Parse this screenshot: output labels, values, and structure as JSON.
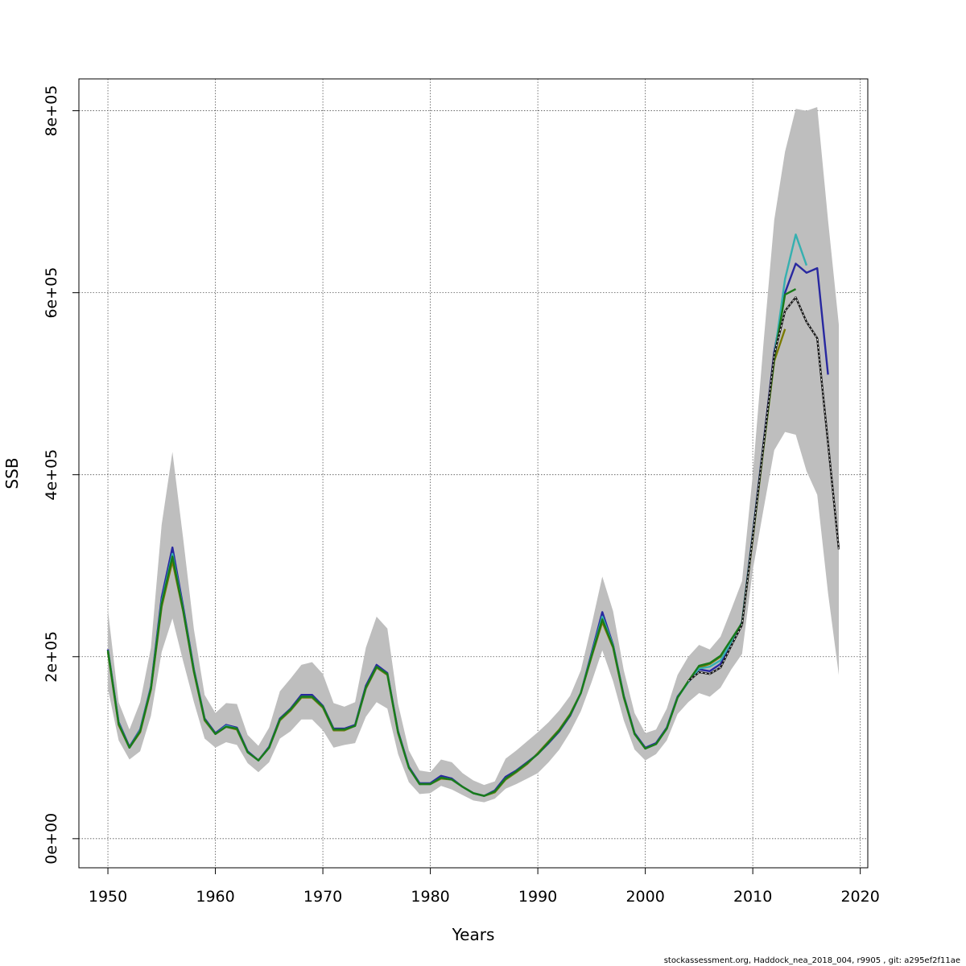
{
  "chart_data": {
    "type": "line",
    "title": "",
    "xlabel": "Years",
    "ylabel": "SSB",
    "xlim": [
      1947.3,
      2020.7
    ],
    "ylim": [
      -32000,
      835000
    ],
    "grid": true,
    "legend": "none",
    "x_ticks": [
      1950,
      1960,
      1970,
      1980,
      1990,
      2000,
      2010,
      2020
    ],
    "x_tick_labels": [
      "1950",
      "1960",
      "1970",
      "1980",
      "1990",
      "2000",
      "2010",
      "2020"
    ],
    "y_ticks": [
      0,
      200000,
      400000,
      600000,
      800000
    ],
    "y_tick_labels": [
      "0e+00",
      "2e+05",
      "4e+05",
      "6e+05",
      "8e+05"
    ],
    "footer": "stockassessment.org, Haddock_nea_2018_004, r9905 , git: a295ef2f11ae",
    "band": {
      "color": "#bebebe",
      "x": [
        1950,
        1951,
        1952,
        1953,
        1954,
        1955,
        1956,
        1957,
        1958,
        1959,
        1960,
        1961,
        1962,
        1963,
        1964,
        1965,
        1966,
        1967,
        1968,
        1969,
        1970,
        1971,
        1972,
        1973,
        1974,
        1975,
        1976,
        1977,
        1978,
        1979,
        1980,
        1981,
        1982,
        1983,
        1984,
        1985,
        1986,
        1987,
        1988,
        1989,
        1990,
        1991,
        1992,
        1993,
        1994,
        1995,
        1996,
        1997,
        1998,
        1999,
        2000,
        2001,
        2002,
        2003,
        2004,
        2005,
        2006,
        2007,
        2008,
        2009,
        2010,
        2011,
        2012,
        2013,
        2014,
        2015,
        2016,
        2017,
        2018
      ],
      "upper": [
        252000,
        150000,
        120000,
        150000,
        210000,
        345000,
        425000,
        330000,
        230000,
        158000,
        138000,
        149000,
        148000,
        114000,
        102000,
        122000,
        162000,
        176000,
        191000,
        194000,
        181000,
        149000,
        145000,
        150000,
        210000,
        244000,
        231000,
        148000,
        97000,
        75000,
        73000,
        87000,
        84000,
        72000,
        64000,
        59000,
        63000,
        88000,
        97000,
        107000,
        117000,
        128000,
        141000,
        157000,
        185000,
        235000,
        288000,
        250000,
        185000,
        138000,
        116000,
        120000,
        143000,
        180000,
        200000,
        213000,
        208000,
        222000,
        252000,
        283000,
        400000,
        545000,
        680000,
        755000,
        802000,
        800000,
        804000,
        680000,
        565000
      ],
      "lower": [
        165000,
        108000,
        87000,
        96000,
        135000,
        205000,
        242000,
        195000,
        150000,
        110000,
        100000,
        106000,
        103000,
        83000,
        73000,
        84000,
        110000,
        118000,
        131000,
        131000,
        119000,
        100000,
        103000,
        105000,
        134000,
        150000,
        143000,
        93000,
        62000,
        49000,
        50000,
        58000,
        54000,
        48000,
        42000,
        40000,
        44000,
        55000,
        60000,
        66000,
        72000,
        84000,
        98000,
        117000,
        140000,
        172000,
        207000,
        173000,
        130000,
        98000,
        86000,
        93000,
        108000,
        137000,
        150000,
        160000,
        156000,
        166000,
        186000,
        203000,
        295000,
        362000,
        427000,
        447000,
        444000,
        404000,
        378000,
        270000,
        180000
      ]
    },
    "series": [
      {
        "color": "#7a7a00",
        "x": [
          1950,
          1951,
          1952,
          1953,
          1954,
          1955,
          1956,
          1957,
          1958,
          1959,
          1960,
          1961,
          1962,
          1963,
          1964,
          1965,
          1966,
          1967,
          1968,
          1969,
          1970,
          1971,
          1972,
          1973,
          1974,
          1975,
          1976,
          1977,
          1978,
          1979,
          1980,
          1981,
          1982,
          1983,
          1984,
          1985,
          1986,
          1987,
          1988,
          1989,
          1990,
          1991,
          1992,
          1993,
          1994,
          1995,
          1996,
          1997,
          1998,
          1999,
          2000,
          2001,
          2002,
          2003,
          2004,
          2005,
          2006,
          2007,
          2008,
          2009,
          2010,
          2011,
          2012,
          2013
        ],
        "values": [
          205000,
          125000,
          100000,
          117000,
          164000,
          255000,
          305000,
          250000,
          183000,
          130000,
          115000,
          123000,
          120000,
          95000,
          86000,
          100000,
          130000,
          141000,
          155000,
          155000,
          144000,
          119000,
          119000,
          124000,
          165000,
          188000,
          180000,
          116000,
          78000,
          60000,
          60000,
          66000,
          65000,
          57000,
          50000,
          47000,
          51000,
          65000,
          73000,
          82000,
          94000,
          107000,
          120000,
          137000,
          160000,
          200000,
          238000,
          210000,
          155000,
          115000,
          99000,
          104000,
          121000,
          155000,
          173000,
          188000,
          192000,
          200000,
          218000,
          236000,
          330000,
          430000,
          525000,
          560000
        ]
      },
      {
        "color": "#2828a0",
        "x": [
          1950,
          1951,
          1952,
          1953,
          1954,
          1955,
          1956,
          1957,
          1958,
          1959,
          1960,
          1961,
          1962,
          1963,
          1964,
          1965,
          1966,
          1967,
          1968,
          1969,
          1970,
          1971,
          1972,
          1973,
          1974,
          1975,
          1976,
          1977,
          1978,
          1979,
          1980,
          1981,
          1982,
          1983,
          1984,
          1985,
          1986,
          1987,
          1988,
          1989,
          1990,
          1991,
          1992,
          1993,
          1994,
          1995,
          1996,
          1997,
          1998,
          1999,
          2000,
          2001,
          2002,
          2003,
          2004,
          2005,
          2006,
          2007,
          2008,
          2009,
          2010,
          2011,
          2012,
          2013,
          2014,
          2015,
          2016,
          2017
        ],
        "values": [
          208000,
          128000,
          101000,
          120000,
          167000,
          265000,
          320000,
          255000,
          186000,
          132000,
          116000,
          125000,
          122000,
          96000,
          86000,
          101000,
          132000,
          143000,
          158000,
          158000,
          146000,
          121000,
          121000,
          125000,
          168000,
          191000,
          182000,
          118000,
          79000,
          61000,
          61000,
          69000,
          66000,
          57000,
          50000,
          47000,
          53000,
          68000,
          75000,
          84000,
          93000,
          105000,
          118000,
          135000,
          160000,
          204000,
          249000,
          213000,
          157000,
          116000,
          100000,
          105000,
          122000,
          156000,
          172000,
          186000,
          184000,
          192000,
          215000,
          238000,
          335000,
          435000,
          535000,
          600000,
          632000,
          622000,
          627000,
          510000
        ]
      },
      {
        "color": "#36b0b0",
        "x": [
          1950,
          1951,
          1952,
          1953,
          1954,
          1955,
          1956,
          1957,
          1958,
          1959,
          1960,
          1961,
          1962,
          1963,
          1964,
          1965,
          1966,
          1967,
          1968,
          1969,
          1970,
          1971,
          1972,
          1973,
          1974,
          1975,
          1976,
          1977,
          1978,
          1979,
          1980,
          1981,
          1982,
          1983,
          1984,
          1985,
          1986,
          1987,
          1988,
          1989,
          1990,
          1991,
          1992,
          1993,
          1994,
          1995,
          1996,
          1997,
          1998,
          1999,
          2000,
          2001,
          2002,
          2003,
          2004,
          2005,
          2006,
          2007,
          2008,
          2009,
          2010,
          2011,
          2012,
          2013,
          2014,
          2015
        ],
        "values": [
          207000,
          127000,
          100000,
          119000,
          166000,
          260000,
          313000,
          252000,
          185000,
          131000,
          115000,
          124000,
          121000,
          95000,
          86000,
          100000,
          131000,
          142000,
          156000,
          156000,
          145000,
          120000,
          120000,
          124000,
          166000,
          189000,
          181000,
          117000,
          78000,
          60000,
          60000,
          67000,
          65000,
          57000,
          50000,
          47000,
          52000,
          66000,
          74000,
          83000,
          93000,
          106000,
          119000,
          136000,
          160000,
          202000,
          244000,
          212000,
          156000,
          115000,
          99000,
          104000,
          121000,
          155000,
          172000,
          187000,
          189000,
          196000,
          216000,
          237000,
          333000,
          433000,
          530000,
          615000,
          664000,
          630000
        ]
      },
      {
        "color": "#1a7a1a",
        "x": [
          1950,
          1951,
          1952,
          1953,
          1954,
          1955,
          1956,
          1957,
          1958,
          1959,
          1960,
          1961,
          1962,
          1963,
          1964,
          1965,
          1966,
          1967,
          1968,
          1969,
          1970,
          1971,
          1972,
          1973,
          1974,
          1975,
          1976,
          1977,
          1978,
          1979,
          1980,
          1981,
          1982,
          1983,
          1984,
          1985,
          1986,
          1987,
          1988,
          1989,
          1990,
          1991,
          1992,
          1993,
          1994,
          1995,
          1996,
          1997,
          1998,
          1999,
          2000,
          2001,
          2002,
          2003,
          2004,
          2005,
          2006,
          2007,
          2008,
          2009,
          2010,
          2011,
          2012,
          2013,
          2014
        ],
        "values": [
          207000,
          126000,
          100000,
          118000,
          165000,
          258000,
          310000,
          251000,
          184000,
          131000,
          115000,
          123000,
          121000,
          95000,
          86000,
          100000,
          131000,
          142000,
          156000,
          156000,
          145000,
          120000,
          120000,
          124000,
          166000,
          189000,
          181000,
          117000,
          78000,
          60000,
          60000,
          67000,
          65000,
          57000,
          50000,
          47000,
          52000,
          66000,
          74000,
          83000,
          93000,
          106000,
          119000,
          136000,
          160000,
          201000,
          241000,
          211000,
          156000,
          115000,
          99000,
          104000,
          121000,
          155000,
          173000,
          190000,
          193000,
          201000,
          219000,
          237000,
          332000,
          432000,
          528000,
          598000,
          604000
        ]
      },
      {
        "color": "#1a1a1a",
        "x": [
          2004,
          2005,
          2006,
          2007,
          2008,
          2009,
          2010,
          2011,
          2012,
          2013,
          2014,
          2015,
          2016,
          2017,
          2018
        ],
        "values": [
          173000,
          183000,
          181000,
          188000,
          212000,
          235000,
          332000,
          433000,
          532000,
          580000,
          595000,
          568000,
          550000,
          435000,
          318000
        ]
      }
    ]
  }
}
